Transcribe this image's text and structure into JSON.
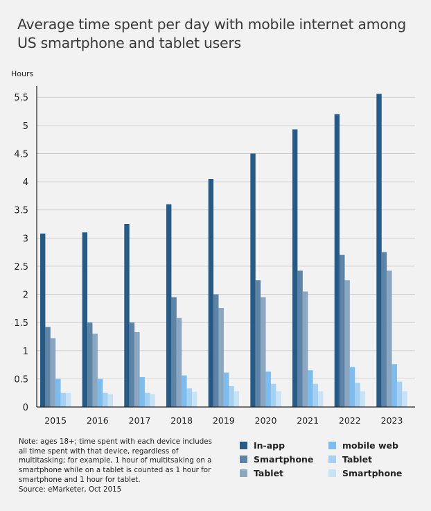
{
  "title_lines": [
    "Average time spent per day with mobile internet among",
    "US smartphone and tablet users"
  ],
  "note_lines": [
    "Note: ages 18+; time spent with each device includes",
    "all time spent with that device, regardless of",
    "multitasking; for example, 1 hour of multitsaking on a",
    "smartphone while on a tablet is counted as 1 hour for",
    "smartphone and 1 hour for tablet.",
    "Source: eMarketer, Oct 2015"
  ],
  "colors": {
    "inapp": "#265a87",
    "inapp_smartphone": "#5d84a6",
    "inapp_tablet": "#8aa6c0",
    "web": "#7cbcee",
    "web_tablet": "#a6d1f2",
    "web_smartphone": "#c8e2f6",
    "grid": "#cfcfcf",
    "axis": "#222222"
  },
  "chart_data": {
    "type": "bar",
    "title": "Average time spent per day with mobile internet among US smartphone and tablet users",
    "ylabel": "Hours",
    "xlabel": "",
    "ylim": [
      0,
      5.7
    ],
    "yticks": [
      0,
      0.5,
      1,
      1.5,
      2,
      2.5,
      3,
      3.5,
      4,
      4.5,
      5,
      5.5
    ],
    "ytick_labels": [
      "0",
      "0.5",
      "1",
      "1.5",
      "2",
      "2.5",
      "3",
      "3.5",
      "4",
      "4.5",
      "5",
      "5.5"
    ],
    "grid": true,
    "categories": [
      "2015",
      "2016",
      "2017",
      "2018",
      "2019",
      "2020",
      "2021",
      "2022",
      "2023"
    ],
    "series": [
      {
        "name": "In-app",
        "group": "In-app",
        "color_key": "inapp",
        "values": [
          3.08,
          3.1,
          3.25,
          3.6,
          4.05,
          4.5,
          4.93,
          5.2,
          5.56
        ]
      },
      {
        "name": "Smartphone",
        "group": "In-app",
        "color_key": "inapp_smartphone",
        "values": [
          1.42,
          1.5,
          1.5,
          1.95,
          2.0,
          2.25,
          2.42,
          2.7,
          2.75
        ]
      },
      {
        "name": "Tablet",
        "group": "In-app",
        "color_key": "inapp_tablet",
        "values": [
          1.22,
          1.3,
          1.33,
          1.58,
          1.76,
          1.95,
          2.05,
          2.25,
          2.42
        ]
      },
      {
        "name": "mobile web",
        "group": "mobile web",
        "color_key": "web",
        "values": [
          0.5,
          0.5,
          0.53,
          0.56,
          0.61,
          0.63,
          0.65,
          0.71,
          0.76
        ]
      },
      {
        "name": "Tablet",
        "group": "mobile web",
        "color_key": "web_tablet",
        "values": [
          0.25,
          0.25,
          0.25,
          0.33,
          0.37,
          0.41,
          0.41,
          0.43,
          0.45
        ]
      },
      {
        "name": "Smartphone",
        "group": "mobile web",
        "color_key": "web_smartphone",
        "values": [
          0.25,
          0.23,
          0.23,
          0.27,
          0.28,
          0.28,
          0.28,
          0.28,
          0.28
        ]
      }
    ],
    "legend_position": "bottom-right"
  }
}
